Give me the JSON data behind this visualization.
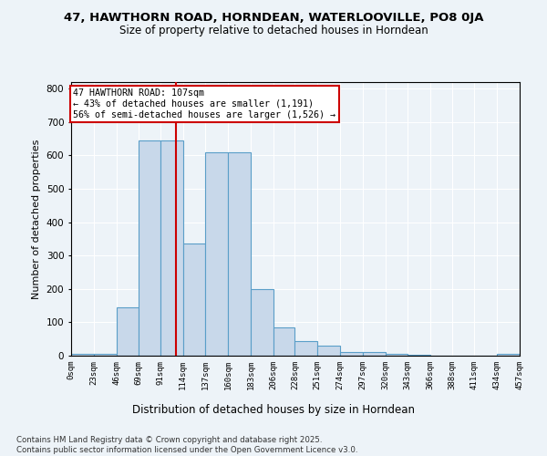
{
  "title1": "47, HAWTHORN ROAD, HORNDEAN, WATERLOOVILLE, PO8 0JA",
  "title2": "Size of property relative to detached houses in Horndean",
  "xlabel": "Distribution of detached houses by size in Horndean",
  "ylabel": "Number of detached properties",
  "bar_color": "#c8d8ea",
  "bar_edge_color": "#5a9ec8",
  "bin_edges": [
    0,
    23,
    46,
    69,
    91,
    114,
    137,
    160,
    183,
    206,
    228,
    251,
    274,
    297,
    320,
    343,
    366,
    388,
    411,
    434,
    457
  ],
  "bin_labels": [
    "0sqm",
    "23sqm",
    "46sqm",
    "69sqm",
    "91sqm",
    "114sqm",
    "137sqm",
    "160sqm",
    "183sqm",
    "206sqm",
    "228sqm",
    "251sqm",
    "274sqm",
    "297sqm",
    "320sqm",
    "343sqm",
    "366sqm",
    "388sqm",
    "411sqm",
    "434sqm",
    "457sqm"
  ],
  "bar_heights": [
    5,
    5,
    145,
    645,
    645,
    335,
    610,
    610,
    200,
    85,
    45,
    30,
    10,
    12,
    5,
    2,
    0,
    0,
    0,
    5
  ],
  "vline_x": 107,
  "vline_color": "#cc0000",
  "ylim": [
    0,
    820
  ],
  "yticks": [
    0,
    100,
    200,
    300,
    400,
    500,
    600,
    700,
    800
  ],
  "annotation_line1": "47 HAWTHORN ROAD: 107sqm",
  "annotation_line2": "← 43% of detached houses are smaller (1,191)",
  "annotation_line3": "56% of semi-detached houses are larger (1,526) →",
  "annotation_box_color": "#ffffff",
  "annotation_box_edge": "#cc0000",
  "footer1": "Contains HM Land Registry data © Crown copyright and database right 2025.",
  "footer2": "Contains public sector information licensed under the Open Government Licence v3.0.",
  "background_color": "#edf3f8",
  "grid_color": "#ffffff"
}
